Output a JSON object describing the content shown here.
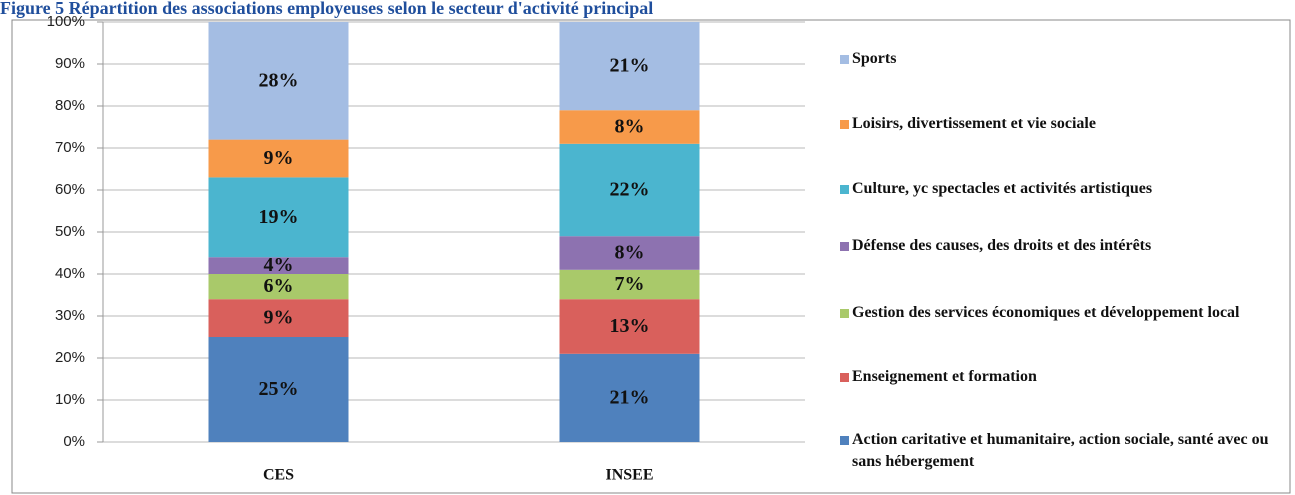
{
  "chart_data": {
    "type": "stacked_bar",
    "title": "Figure 5 Répartition des associations employeuses selon le secteur d'activité principal",
    "categories": [
      "CES",
      "INSEE"
    ],
    "series": [
      {
        "name": "Action caritative et humanitaire, action sociale, santé avec ou sans hébergement",
        "color": "#4f81bd",
        "values": [
          25,
          21
        ],
        "value_labels": [
          "25%",
          "21%"
        ]
      },
      {
        "name": "Enseignement et formation",
        "color": "#d9605c",
        "values": [
          9,
          13
        ],
        "value_labels": [
          "9%",
          "13%"
        ]
      },
      {
        "name": "Gestion des services économiques et développement local",
        "color": "#a9c96a",
        "values": [
          6,
          7
        ],
        "value_labels": [
          "6%",
          "7%"
        ]
      },
      {
        "name": "Défense des causes, des droits et des intérêts",
        "color": "#8d72b0",
        "values": [
          4,
          8
        ],
        "value_labels": [
          "4%",
          "8%"
        ]
      },
      {
        "name": "Culture, yc spectacles et activités artistiques",
        "color": "#4bb5cf",
        "values": [
          19,
          22
        ],
        "value_labels": [
          "19%",
          "22%"
        ]
      },
      {
        "name": "Loisirs, divertissement et vie sociale",
        "color": "#f79a4a",
        "values": [
          9,
          8
        ],
        "value_labels": [
          "9%",
          "8%"
        ]
      },
      {
        "name": "Sports",
        "color": "#a4bde3",
        "values": [
          28,
          21
        ],
        "value_labels": [
          "28%",
          "21%"
        ]
      }
    ],
    "ylim": [
      0,
      100
    ],
    "yticks": [
      {
        "value": 0,
        "label": "0%"
      },
      {
        "value": 10,
        "label": "10%"
      },
      {
        "value": 20,
        "label": "20%"
      },
      {
        "value": 30,
        "label": "30%"
      },
      {
        "value": 40,
        "label": "40%"
      },
      {
        "value": 50,
        "label": "50%"
      },
      {
        "value": 60,
        "label": "60%"
      },
      {
        "value": 70,
        "label": "70%"
      },
      {
        "value": 80,
        "label": "80%"
      },
      {
        "value": 90,
        "label": "90%"
      },
      {
        "value": 100,
        "label": "100%"
      }
    ],
    "grid": true,
    "legend": "right"
  }
}
